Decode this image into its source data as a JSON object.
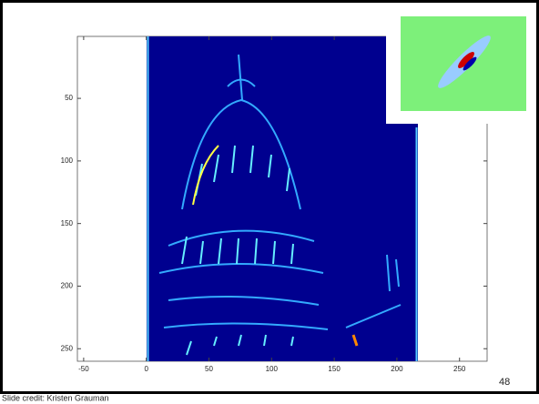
{
  "plot": {
    "xlim": [
      -55,
      272
    ],
    "ylim": [
      0.5,
      260
    ],
    "xticks": [
      -50,
      0,
      50,
      100,
      150,
      200,
      250
    ],
    "yticks": [
      50,
      100,
      150,
      200,
      250
    ]
  },
  "slide": {
    "page_number": "48",
    "credit": "Slide credit: Kristen Grauman"
  }
}
